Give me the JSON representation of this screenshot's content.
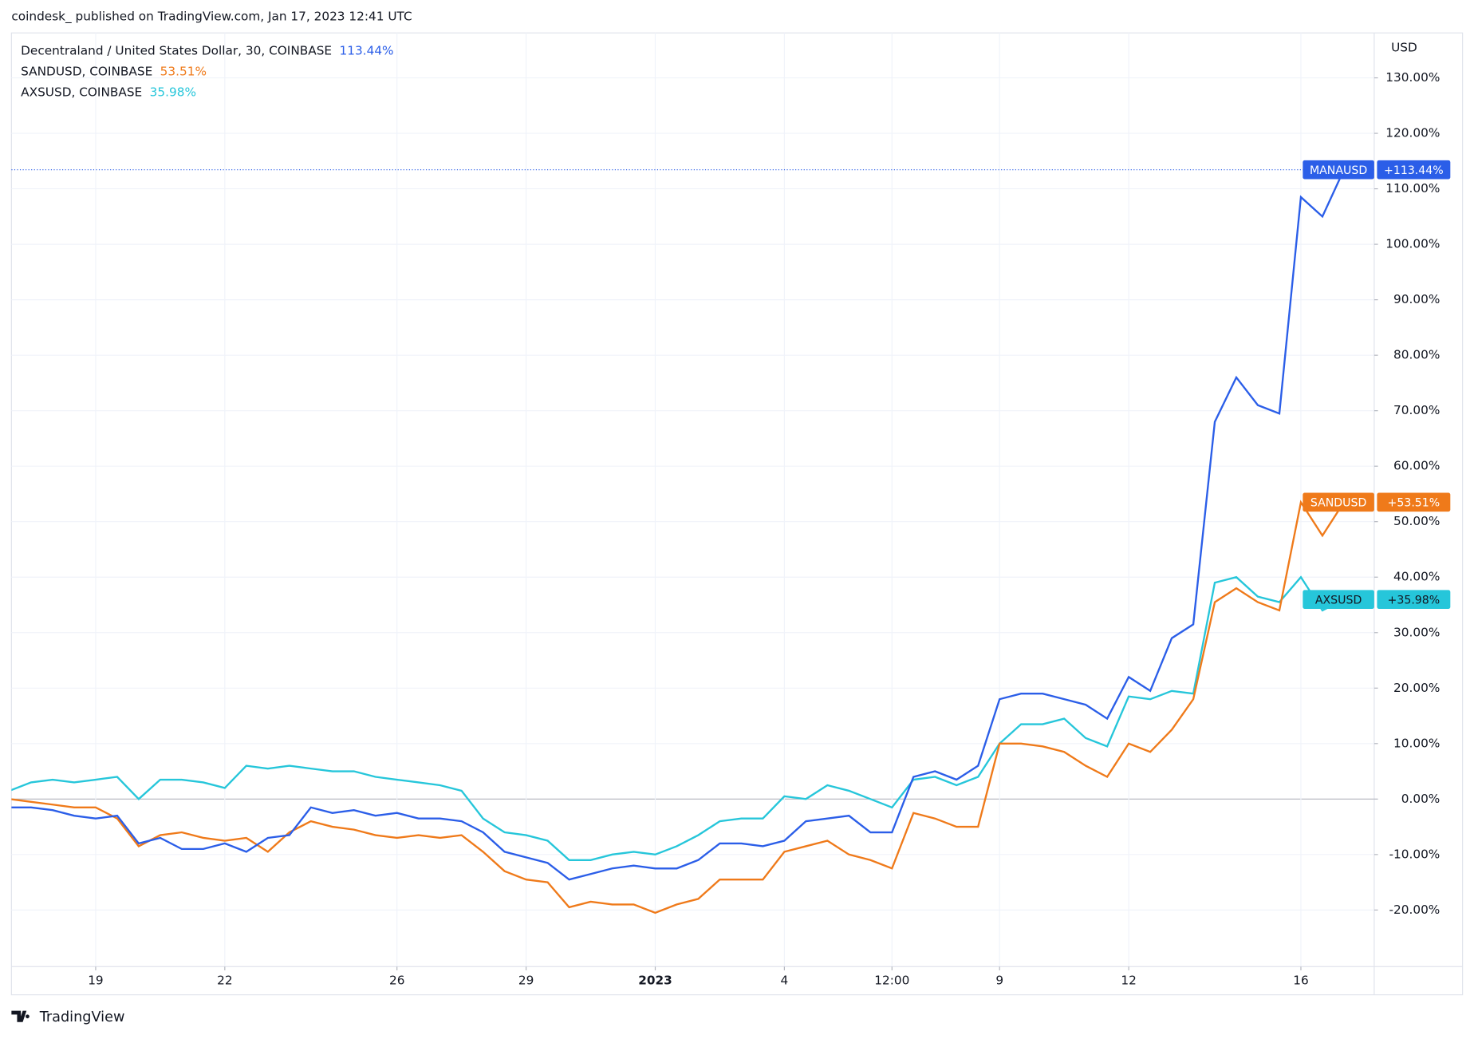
{
  "header": "coindesk_ published on TradingView.com, Jan 17, 2023 12:41 UTC",
  "footer": "TradingView",
  "chart_data": {
    "type": "line",
    "y_axis_label": "USD",
    "categories": [
      null,
      null,
      null,
      null,
      "19",
      null,
      null,
      null,
      null,
      null,
      "22",
      null,
      null,
      null,
      null,
      null,
      null,
      null,
      "26",
      null,
      null,
      null,
      null,
      null,
      "29",
      null,
      null,
      null,
      null,
      null,
      "2023",
      null,
      null,
      null,
      null,
      null,
      "4",
      null,
      null,
      null,
      null,
      "12:00",
      null,
      null,
      null,
      null,
      "9",
      null,
      null,
      null,
      null,
      null,
      "12",
      null,
      null,
      null,
      null,
      null,
      null,
      null,
      "16",
      null,
      null
    ],
    "ylim": [
      -30.2,
      138.1
    ],
    "yticks": [
      {
        "value": -20,
        "label": "-20.00%"
      },
      {
        "value": -10,
        "label": "-10.00%"
      },
      {
        "value": 0,
        "label": "0.00%"
      },
      {
        "value": 10,
        "label": "10.00%"
      },
      {
        "value": 20,
        "label": "20.00%"
      },
      {
        "value": 30,
        "label": "30.00%"
      },
      {
        "value": 40,
        "label": "40.00%"
      },
      {
        "value": 50,
        "label": "50.00%"
      },
      {
        "value": 60,
        "label": "60.00%"
      },
      {
        "value": 70,
        "label": "70.00%"
      },
      {
        "value": 80,
        "label": "80.00%"
      },
      {
        "value": 90,
        "label": "90.00%"
      },
      {
        "value": 100,
        "label": "100.00%"
      },
      {
        "value": 110,
        "label": "110.00%"
      },
      {
        "value": 120,
        "label": "120.00%"
      },
      {
        "value": 130,
        "label": "130.00%"
      }
    ],
    "grid": true,
    "series": [
      {
        "name": "Decentraland / United States Dollar, 30, COINBASE",
        "symbol": "MANAUSD",
        "legend_value_label": "113.44%",
        "badge_label": "+113.44%",
        "color": "#2b5ee8",
        "values": [
          -1.5,
          -1.5,
          -2,
          -3,
          -3.5,
          -3,
          -8,
          -7,
          -9,
          -9,
          -8,
          -9.5,
          -7,
          -6.5,
          -1.5,
          -2.5,
          -2,
          -3,
          -2.5,
          -3.5,
          -3.5,
          -4,
          -6,
          -9.5,
          -10.5,
          -11.5,
          -14.5,
          -13.5,
          -12.5,
          -12,
          -12.5,
          -12.5,
          -11,
          -8,
          -8,
          -8.5,
          -7.5,
          -4,
          -3.5,
          -3,
          -6,
          -6,
          4,
          5,
          3.5,
          6,
          18,
          19,
          19,
          18,
          17,
          14.5,
          22,
          19.5,
          29,
          31.5,
          68,
          76,
          71,
          69.5,
          108.5,
          105,
          113.44
        ]
      },
      {
        "name": "SANDUSD, COINBASE",
        "symbol": "SANDUSD",
        "legend_value_label": "53.51%",
        "badge_label": "+53.51%",
        "color": "#ef7a1a",
        "values": [
          0,
          -0.5,
          -1,
          -1.5,
          -1.5,
          -3.5,
          -8.5,
          -6.5,
          -6,
          -7,
          -7.5,
          -7,
          -9.5,
          -6,
          -4,
          -5,
          -5.5,
          -6.5,
          -7,
          -6.5,
          -7,
          -6.5,
          -9.5,
          -13,
          -14.5,
          -15,
          -19.5,
          -18.5,
          -19,
          -19,
          -20.5,
          -19,
          -18,
          -14.5,
          -14.5,
          -14.5,
          -9.5,
          -8.5,
          -7.5,
          -10,
          -11,
          -12.5,
          -2.5,
          -3.5,
          -5,
          -5,
          10,
          10,
          9.5,
          8.5,
          6,
          4,
          10,
          8.5,
          12.5,
          18,
          35.5,
          38,
          35.5,
          34,
          53.5,
          47.5,
          53.51
        ]
      },
      {
        "name": "AXSUSD, COINBASE",
        "symbol": "AXSUSD",
        "legend_value_label": "35.98%",
        "badge_label": "+35.98%",
        "color": "#26c6da",
        "values": [
          1.5,
          3,
          3.5,
          3,
          3.5,
          4,
          0,
          3.5,
          3.5,
          3,
          2,
          6,
          5.5,
          6,
          5.5,
          5,
          5,
          4,
          3.5,
          3,
          2.5,
          1.5,
          -3.5,
          -6,
          -6.5,
          -7.5,
          -11,
          -11,
          -10,
          -9.5,
          -10,
          -8.5,
          -6.5,
          -4,
          -3.5,
          -3.5,
          0.5,
          0,
          2.5,
          1.5,
          0,
          -1.5,
          3.5,
          4,
          2.5,
          4,
          10,
          13.5,
          13.5,
          14.5,
          11,
          9.5,
          18.5,
          18,
          19.5,
          19,
          39,
          40,
          36.5,
          35.5,
          40,
          34,
          35.98
        ]
      }
    ]
  }
}
